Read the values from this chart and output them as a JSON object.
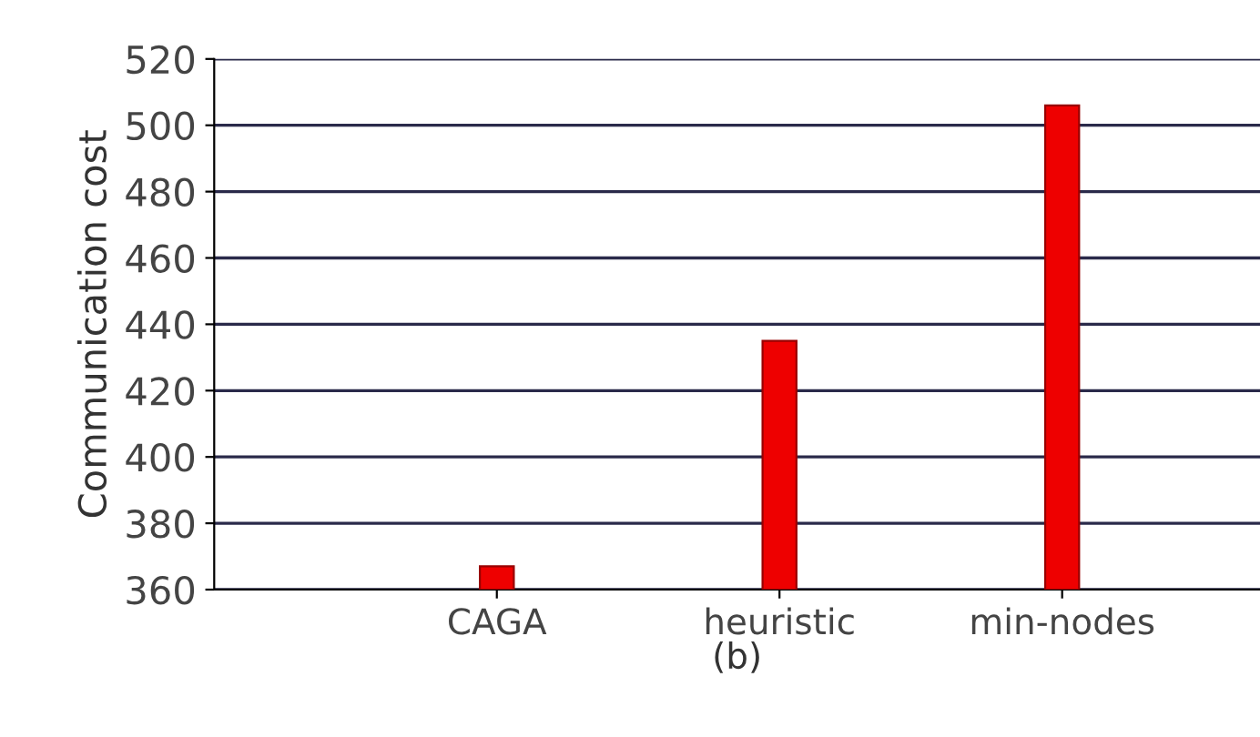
{
  "chart_data": {
    "type": "bar",
    "xlabel": "(b)",
    "ylabel": "Communication cost",
    "categories": [
      "CAGA",
      "heuristic",
      "min-nodes"
    ],
    "values": [
      367,
      435,
      506
    ],
    "color": "#ee0000",
    "ylim": [
      360,
      520
    ],
    "yticks": [
      360,
      380,
      400,
      420,
      440,
      460,
      480,
      500,
      520
    ],
    "grid": "y"
  }
}
